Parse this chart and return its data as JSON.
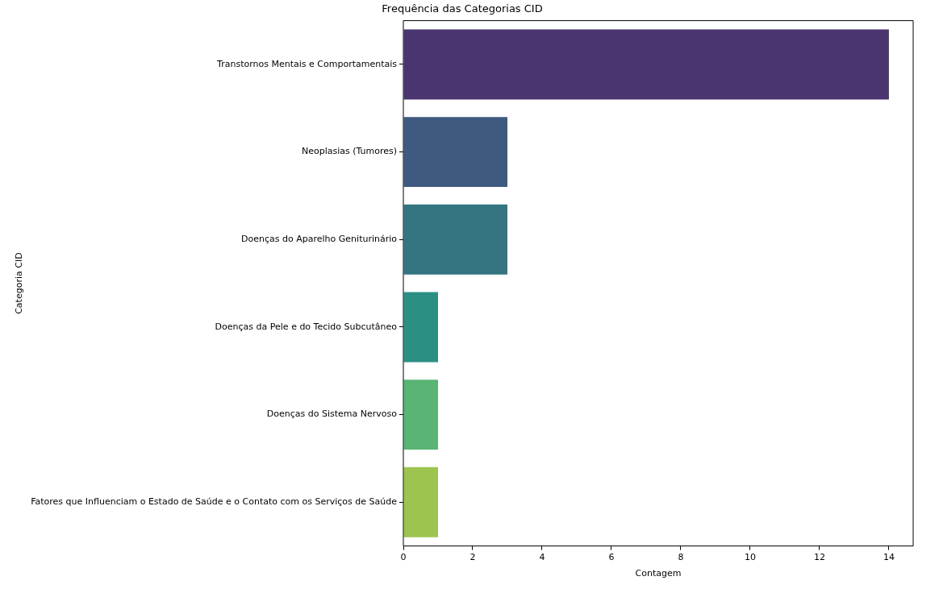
{
  "chart_data": {
    "type": "bar",
    "orientation": "horizontal",
    "title": "Frequência das Categorias CID",
    "xlabel": "Contagem",
    "ylabel": "Categoria CID",
    "categories": [
      "Transtornos Mentais e Comportamentais",
      "Neoplasias (Tumores)",
      "Doenças do Aparelho Geniturinário",
      "Doenças da Pele e do Tecido Subcutâneo",
      "Doenças do Sistema Nervoso",
      "Fatores que Influenciam o Estado de Saúde e o Contato com os Serviços de Saúde"
    ],
    "values": [
      14,
      3,
      3,
      1,
      1,
      1
    ],
    "colors": [
      "#4a3571",
      "#3f5a80",
      "#357582",
      "#2c8f84",
      "#5ab474",
      "#9cc44f"
    ],
    "xlim": [
      0,
      14.7
    ],
    "xticks": [
      0,
      2,
      4,
      6,
      8,
      10,
      12,
      14
    ],
    "grid": false,
    "legend": false
  }
}
